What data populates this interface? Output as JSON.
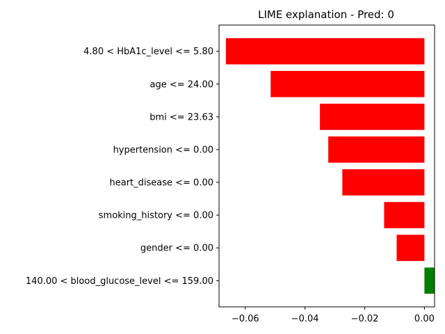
{
  "chart_data": {
    "type": "bar",
    "orientation": "horizontal",
    "title": "LIME explanation - Pred: 0",
    "xlabel": "",
    "ylabel": "",
    "categories": [
      "4.80 < HbA1c_level <= 5.80",
      "age <= 24.00",
      "bmi <= 23.63",
      "hypertension <= 0.00",
      "heart_disease <= 0.00",
      "smoking_history <= 0.00",
      "gender <= 0.00",
      "140.00 < blood_glucose_level <= 159.00"
    ],
    "values": [
      -0.0665,
      -0.0515,
      -0.035,
      -0.0322,
      -0.0275,
      -0.0135,
      -0.0093,
      0.0033
    ],
    "xlim": [
      -0.0688,
      0.0034
    ],
    "xticks": [
      -0.06,
      -0.04,
      -0.02,
      0.0
    ],
    "xtick_labels": [
      "−0.06",
      "−0.04",
      "−0.02",
      "0.00"
    ],
    "grid": false,
    "legend": "none",
    "colors": {
      "negative": "#ff0000",
      "positive": "#008000",
      "axis": "#000000"
    }
  }
}
